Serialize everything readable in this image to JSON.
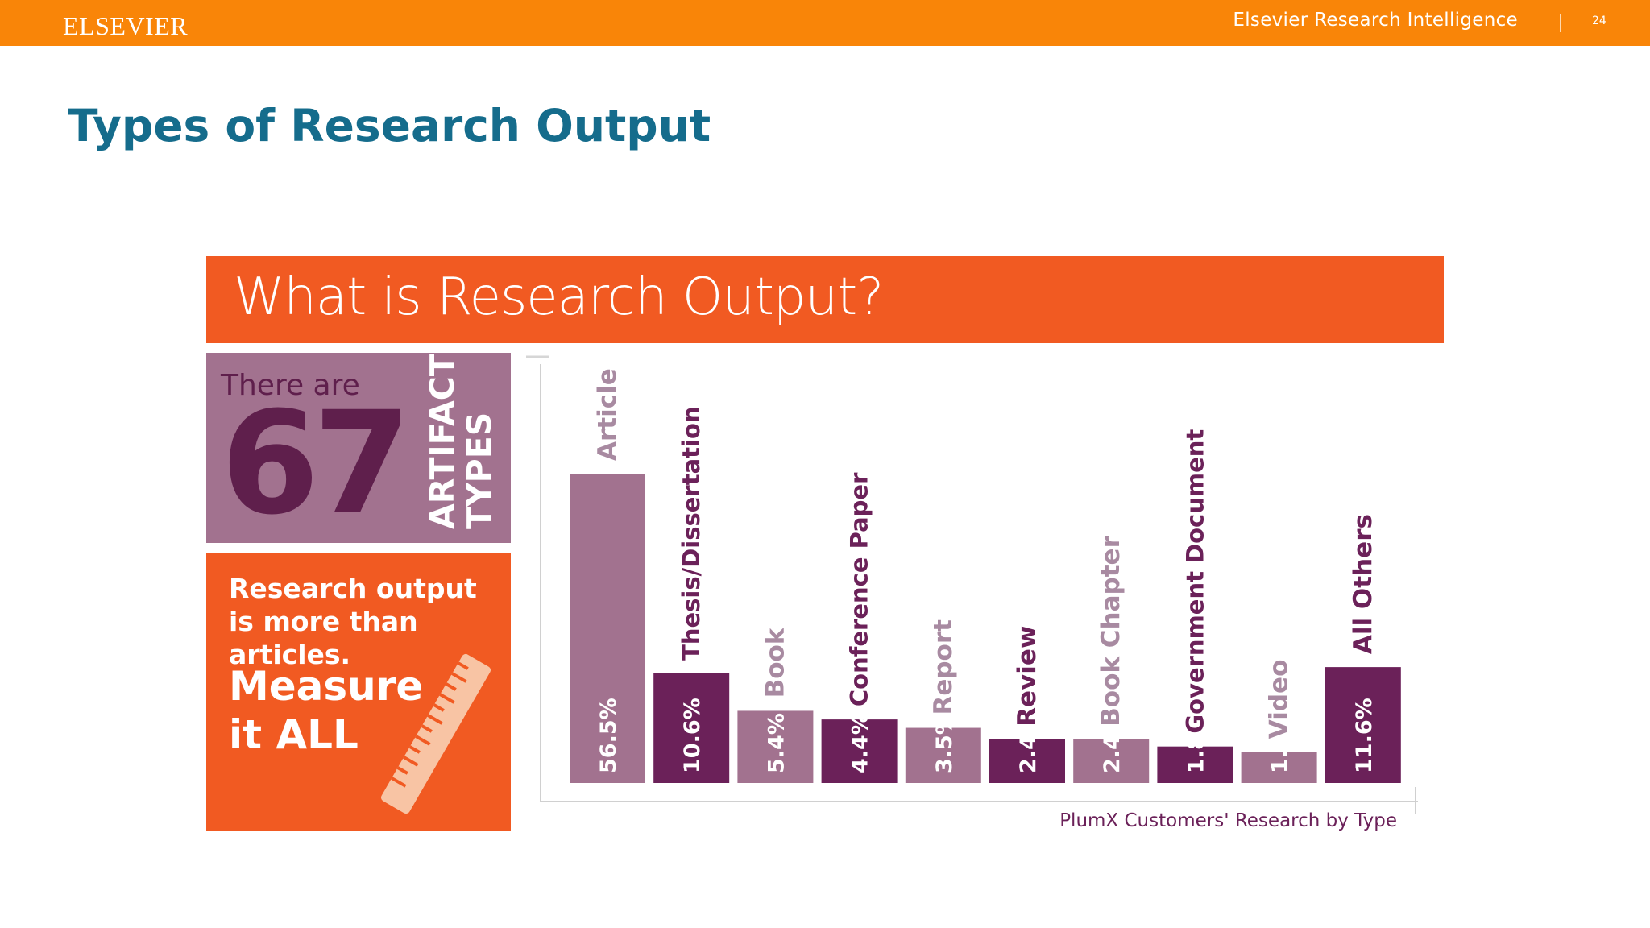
{
  "header": {
    "logo": "ELSEVIER",
    "brand": "Elsevier Research Intelligence",
    "page_number": "24"
  },
  "slide": {
    "title": "Types of Research Output"
  },
  "infographic": {
    "banner": "What is Research Output?",
    "there_are": "There are",
    "count": "67",
    "artifact_line1": "ARTIFACT",
    "artifact_line2": "TYPES",
    "more_than": "Research output is more than articles.",
    "measure": "Measure it ALL"
  },
  "colors": {
    "header": "#f98508",
    "title": "#156c8c",
    "banner": "#f15a22",
    "light_bar": "#a2728f",
    "dark_bar": "#6b2159",
    "faded_label": "#a88aa1"
  },
  "chart_data": {
    "type": "bar",
    "caption": "PlumX Customers' Research by Type",
    "categories": [
      "Article",
      "Thesis/Dissertation",
      "Book",
      "Conference Paper",
      "Report",
      "Review",
      "Book Chapter",
      "Government Document",
      "Video",
      "All Others"
    ],
    "values": [
      56.5,
      10.6,
      5.4,
      4.4,
      3.5,
      2.4,
      2.4,
      1.8,
      1.4,
      11.6
    ],
    "value_labels": [
      "56.5%",
      "10.6%",
      "5.4%",
      "4.4%",
      "3.5%",
      "2.4%",
      "2.4%",
      "1.8%",
      "1.4%",
      "11.6%"
    ],
    "bar_style": [
      "light",
      "dark",
      "light",
      "dark",
      "light",
      "dark",
      "light",
      "dark",
      "light",
      "dark"
    ],
    "grid": false,
    "legend": "none"
  }
}
